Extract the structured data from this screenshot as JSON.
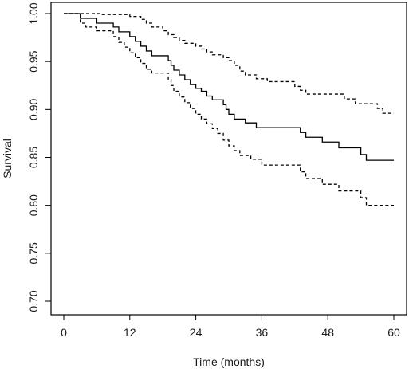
{
  "chart_data": {
    "type": "line",
    "xlabel": "Time (months)",
    "ylabel": "Survival",
    "xlim": [
      0,
      60
    ],
    "ylim": [
      0.7,
      1.0
    ],
    "x_ticks": [
      0,
      12,
      24,
      36,
      48,
      60
    ],
    "x_tick_labels": [
      "0",
      "12",
      "24",
      "36",
      "48",
      "60"
    ],
    "y_ticks": [
      0.7,
      0.75,
      0.8,
      0.85,
      0.9,
      0.95,
      1.0
    ],
    "y_tick_labels": [
      "0.70",
      "0.75",
      "0.80",
      "0.85",
      "0.90",
      "0.95",
      "1.00"
    ],
    "grid": false,
    "legend": "none",
    "series": [
      {
        "style": "solid",
        "step": true,
        "points": [
          [
            0,
            1.0
          ],
          [
            3,
            0.995
          ],
          [
            6,
            0.99
          ],
          [
            9,
            0.986
          ],
          [
            10,
            0.981
          ],
          [
            12,
            0.976
          ],
          [
            13,
            0.971
          ],
          [
            14,
            0.966
          ],
          [
            15,
            0.961
          ],
          [
            16,
            0.956
          ],
          [
            19,
            0.951
          ],
          [
            19.5,
            0.946
          ],
          [
            20,
            0.941
          ],
          [
            21,
            0.936
          ],
          [
            22,
            0.931
          ],
          [
            23,
            0.926
          ],
          [
            24,
            0.922
          ],
          [
            25,
            0.919
          ],
          [
            26,
            0.914
          ],
          [
            27,
            0.91
          ],
          [
            29,
            0.905
          ],
          [
            29.5,
            0.9
          ],
          [
            30,
            0.895
          ],
          [
            31,
            0.89
          ],
          [
            33,
            0.886
          ],
          [
            35,
            0.881
          ],
          [
            43,
            0.876
          ],
          [
            44,
            0.871
          ],
          [
            47,
            0.866
          ],
          [
            50,
            0.86
          ],
          [
            54,
            0.853
          ],
          [
            55,
            0.847
          ],
          [
            60,
            0.847
          ]
        ]
      },
      {
        "style": "dashed",
        "step": true,
        "points": [
          [
            0,
            1.0
          ],
          [
            7,
            0.999
          ],
          [
            12,
            0.997
          ],
          [
            14,
            0.994
          ],
          [
            15,
            0.99
          ],
          [
            16,
            0.986
          ],
          [
            18,
            0.982
          ],
          [
            19,
            0.978
          ],
          [
            20,
            0.975
          ],
          [
            21,
            0.972
          ],
          [
            22,
            0.969
          ],
          [
            24,
            0.966
          ],
          [
            25,
            0.963
          ],
          [
            26,
            0.96
          ],
          [
            27,
            0.957
          ],
          [
            29,
            0.954
          ],
          [
            30,
            0.951
          ],
          [
            31,
            0.946
          ],
          [
            32,
            0.94
          ],
          [
            33,
            0.936
          ],
          [
            35,
            0.932
          ],
          [
            37,
            0.929
          ],
          [
            42,
            0.924
          ],
          [
            43,
            0.92
          ],
          [
            44,
            0.916
          ],
          [
            51,
            0.911
          ],
          [
            53,
            0.906
          ],
          [
            57,
            0.901
          ],
          [
            58,
            0.896
          ],
          [
            60,
            0.896
          ]
        ]
      },
      {
        "style": "dashed",
        "step": true,
        "points": [
          [
            0,
            1.0
          ],
          [
            3,
            0.99
          ],
          [
            4,
            0.986
          ],
          [
            6,
            0.982
          ],
          [
            9,
            0.976
          ],
          [
            10,
            0.97
          ],
          [
            11,
            0.965
          ],
          [
            12,
            0.959
          ],
          [
            13,
            0.954
          ],
          [
            14,
            0.948
          ],
          [
            15,
            0.942
          ],
          [
            16,
            0.938
          ],
          [
            19,
            0.931
          ],
          [
            19.5,
            0.925
          ],
          [
            20,
            0.919
          ],
          [
            21,
            0.913
          ],
          [
            22,
            0.907
          ],
          [
            23,
            0.901
          ],
          [
            24,
            0.895
          ],
          [
            25,
            0.89
          ],
          [
            26,
            0.885
          ],
          [
            27,
            0.88
          ],
          [
            28,
            0.875
          ],
          [
            29,
            0.868
          ],
          [
            30,
            0.862
          ],
          [
            31,
            0.857
          ],
          [
            32,
            0.852
          ],
          [
            34,
            0.848
          ],
          [
            36,
            0.842
          ],
          [
            43,
            0.835
          ],
          [
            44,
            0.828
          ],
          [
            47,
            0.822
          ],
          [
            50,
            0.815
          ],
          [
            54,
            0.808
          ],
          [
            55,
            0.8
          ],
          [
            60,
            0.8
          ]
        ]
      }
    ]
  }
}
